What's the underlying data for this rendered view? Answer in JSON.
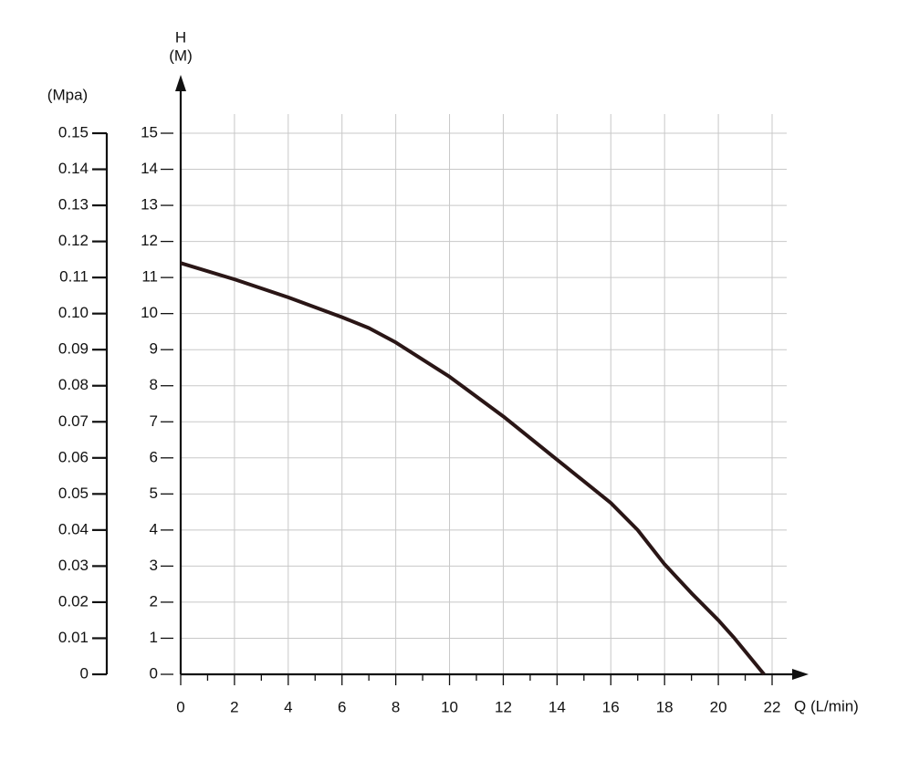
{
  "chart_data": {
    "type": "line",
    "x_label": "Q (L/min)",
    "y_label": "H",
    "y_unit": "(M)",
    "y2_label": "(Mpa)",
    "grid": true,
    "x": [
      0,
      2,
      4,
      6,
      7,
      8,
      10,
      12,
      14,
      16,
      17,
      18,
      19,
      20,
      20.6,
      21.7
    ],
    "series": [
      {
        "color": "#2a1616",
        "values": [
          11.4,
          10.95,
          10.45,
          9.9,
          9.6,
          9.2,
          8.25,
          7.15,
          5.95,
          4.75,
          4.0,
          3.05,
          2.25,
          1.5,
          1.0,
          0
        ]
      }
    ],
    "xlim": [
      0,
      22
    ],
    "xticks": [
      0,
      2,
      4,
      6,
      8,
      10,
      12,
      14,
      16,
      18,
      20,
      22
    ],
    "xminorticks": [
      1,
      3,
      5,
      7,
      9,
      11,
      13,
      15,
      17,
      19,
      21
    ],
    "ylim": [
      0,
      15
    ],
    "yticks": [
      0,
      1,
      2,
      3,
      4,
      5,
      6,
      7,
      8,
      9,
      10,
      11,
      12,
      13,
      14,
      15
    ],
    "y2lim": [
      0,
      0.15
    ],
    "y2ticks": [
      0,
      0.01,
      0.02,
      0.03,
      0.04,
      0.05,
      0.06,
      0.07,
      0.08,
      0.09,
      {
        "value": 0.1,
        "label": "0.10"
      },
      0.11,
      0.12,
      0.13,
      0.14,
      0.15
    ]
  }
}
